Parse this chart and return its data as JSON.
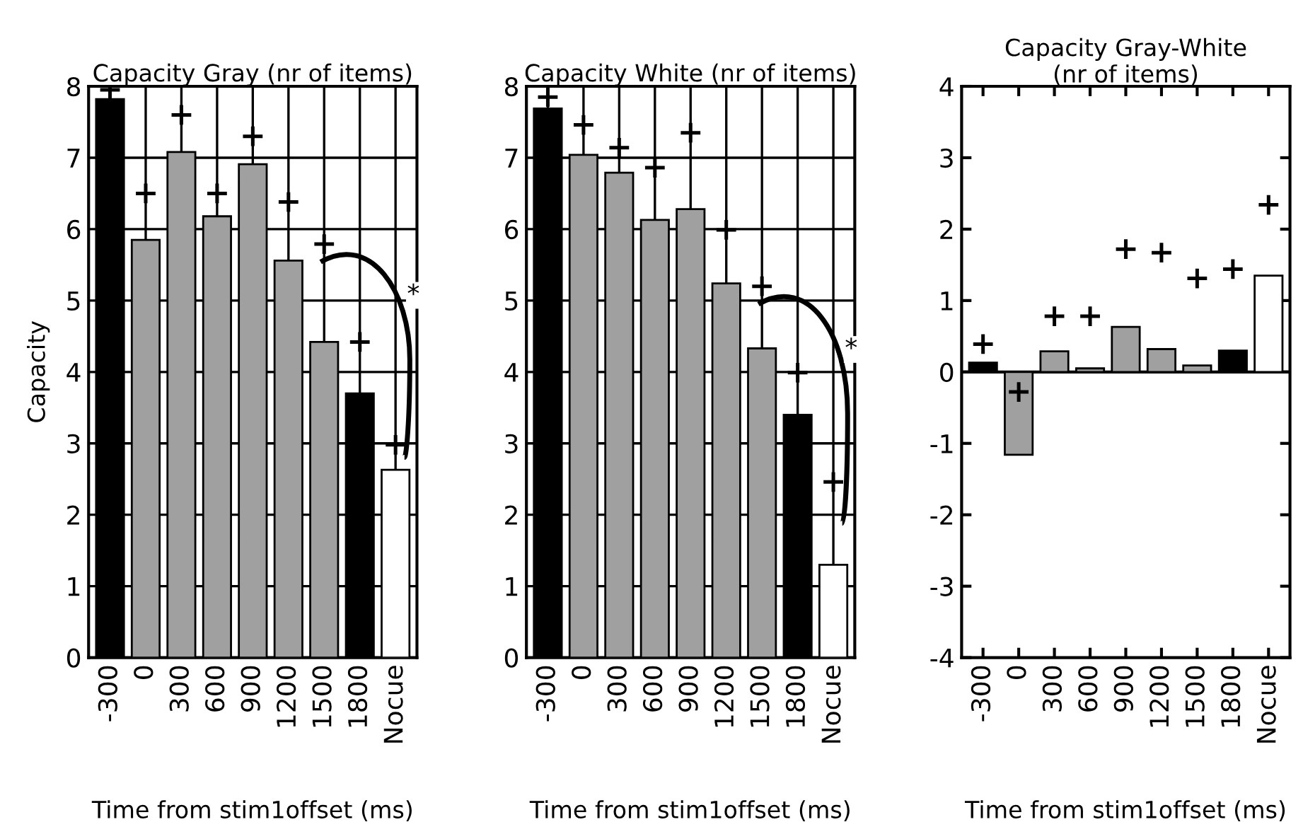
{
  "chart_data": [
    {
      "type": "bar",
      "title": "Capacity Gray (nr of items)",
      "xlabel": "Time from stim1offset (ms)",
      "ylabel": "Capacity",
      "categories": [
        "-300",
        "0",
        "300",
        "600",
        "900",
        "1200",
        "1500",
        "1800",
        "Nocue"
      ],
      "ylim": [
        0,
        8
      ],
      "yticks": [
        0,
        1,
        2,
        3,
        4,
        5,
        6,
        7,
        8
      ],
      "grid": true,
      "annotations": [
        "*"
      ],
      "series": [
        {
          "colors": [
            "#000000",
            "#a0a0a0",
            "#a0a0a0",
            "#a0a0a0",
            "#a0a0a0",
            "#a0a0a0",
            "#a0a0a0",
            "#000000",
            "#ffffff"
          ],
          "values": [
            7.82,
            5.85,
            7.08,
            6.18,
            6.91,
            5.56,
            4.42,
            3.7,
            2.63
          ]
        },
        {
          "type": "scatter",
          "marker": "cross",
          "color": "#000000",
          "values": [
            7.95,
            6.5,
            7.6,
            6.5,
            7.3,
            6.38,
            5.79,
            4.42,
            2.98
          ]
        }
      ]
    },
    {
      "type": "bar",
      "title": "Capacity White (nr of items)",
      "xlabel": "Time from stim1offset (ms)",
      "categories": [
        "-300",
        "0",
        "300",
        "600",
        "900",
        "1200",
        "1500",
        "1800",
        "Nocue"
      ],
      "ylim": [
        0,
        8
      ],
      "yticks": [
        0,
        1,
        2,
        3,
        4,
        5,
        6,
        7,
        8
      ],
      "grid": true,
      "annotations": [
        "*"
      ],
      "series": [
        {
          "colors": [
            "#000000",
            "#a0a0a0",
            "#a0a0a0",
            "#a0a0a0",
            "#a0a0a0",
            "#a0a0a0",
            "#a0a0a0",
            "#000000",
            "#ffffff"
          ],
          "values": [
            7.69,
            7.04,
            6.79,
            6.13,
            6.28,
            5.24,
            4.33,
            3.4,
            1.3
          ]
        },
        {
          "type": "scatter",
          "marker": "cross",
          "color": "#000000",
          "values": [
            7.85,
            7.46,
            7.14,
            6.86,
            7.35,
            5.99,
            5.2,
            3.99,
            2.46
          ]
        }
      ]
    },
    {
      "type": "bar",
      "title": "Capacity Gray-White\n(nr of items)",
      "xlabel": "Time from stim1offset (ms)",
      "categories": [
        "-300",
        "0",
        "300",
        "600",
        "900",
        "1200",
        "1500",
        "1800",
        "Nocue"
      ],
      "ylim": [
        -4,
        4
      ],
      "yticks": [
        -4,
        -3,
        -2,
        -1,
        0,
        1,
        2,
        3,
        4
      ],
      "ref_lines": [
        {
          "axis": "y",
          "value": 0,
          "color": "#000000"
        }
      ],
      "series": [
        {
          "colors": [
            "#000000",
            "#a0a0a0",
            "#a0a0a0",
            "#a0a0a0",
            "#a0a0a0",
            "#a0a0a0",
            "#a0a0a0",
            "#000000",
            "#ffffff"
          ],
          "values": [
            0.13,
            -1.16,
            0.29,
            0.05,
            0.63,
            0.32,
            0.09,
            0.3,
            1.35
          ]
        },
        {
          "type": "scatter",
          "marker": "cross",
          "color": "#000000",
          "values": [
            0.39,
            -0.28,
            0.78,
            0.78,
            1.72,
            1.67,
            1.31,
            1.44,
            2.34
          ]
        }
      ]
    }
  ]
}
